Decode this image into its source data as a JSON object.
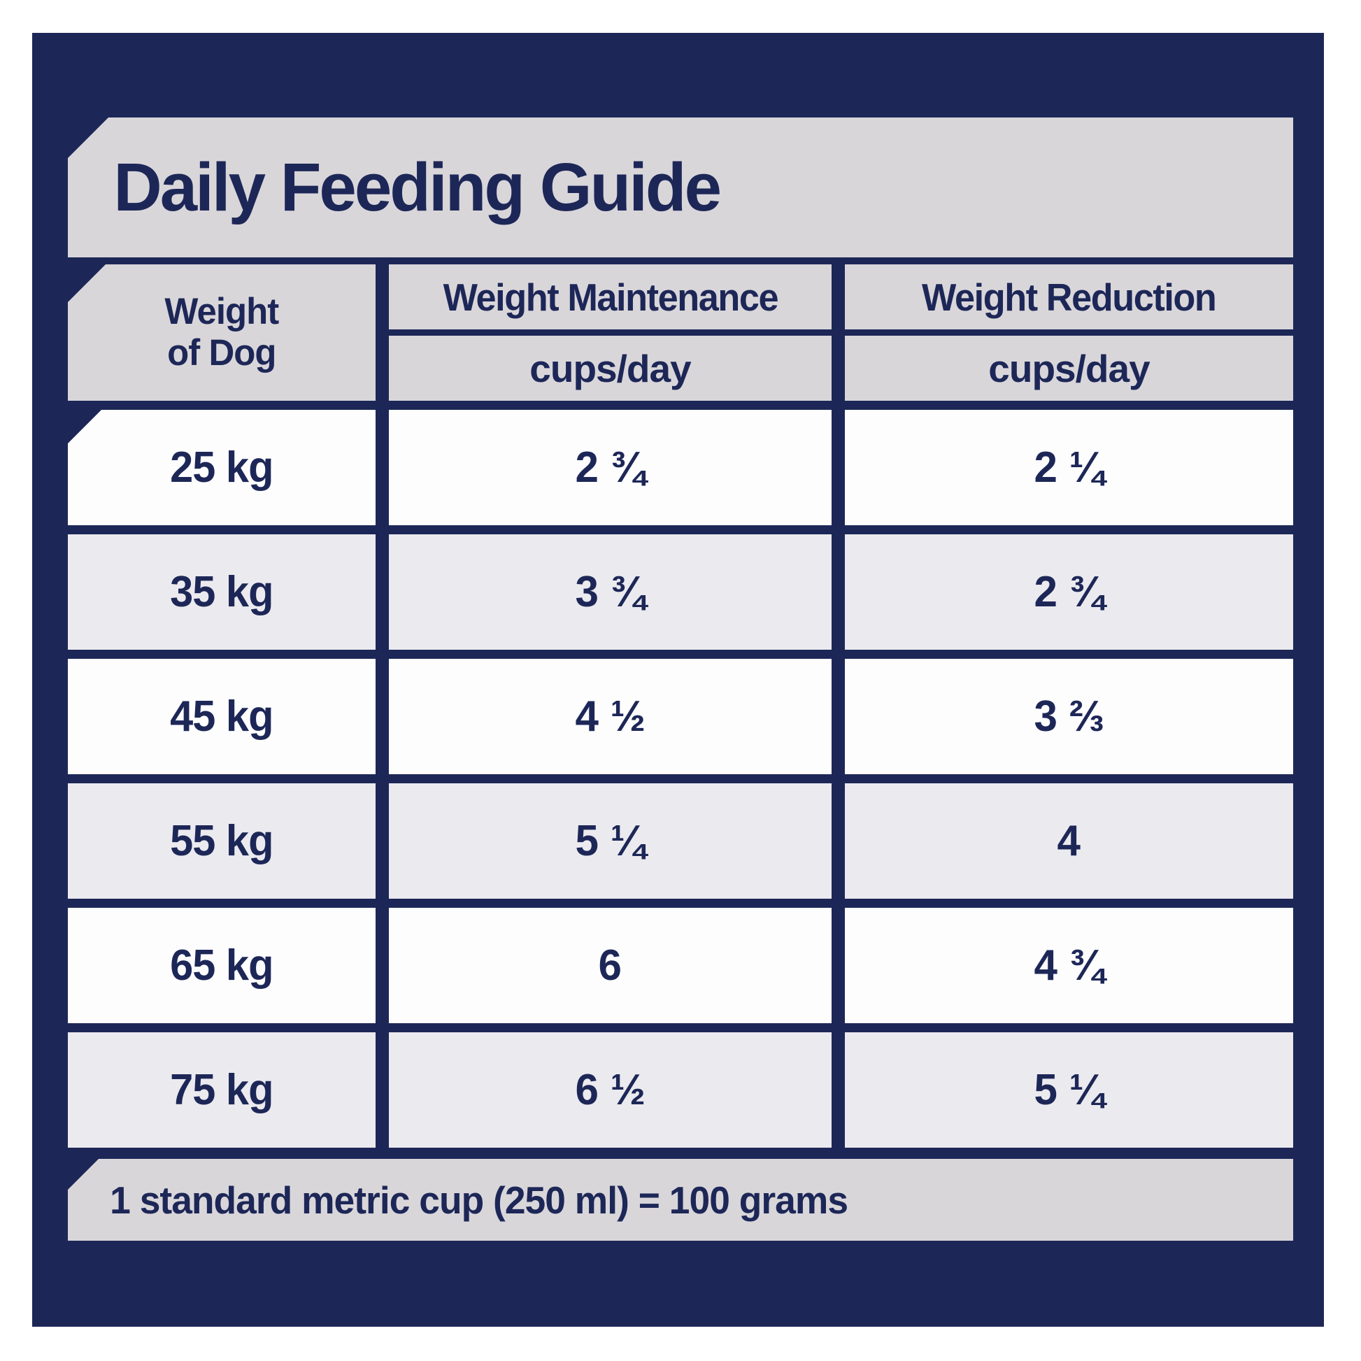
{
  "title": "Daily Feeding Guide",
  "table": {
    "weight_header": {
      "line1": "Weight",
      "line2": "of Dog"
    },
    "columns": [
      {
        "label": "Weight Maintenance",
        "unit": "cups/day"
      },
      {
        "label": "Weight Reduction",
        "unit": "cups/day"
      }
    ],
    "rows": [
      {
        "weight": "25 kg",
        "maintenance": "2 ¾",
        "reduction": "2 ¼"
      },
      {
        "weight": "35 kg",
        "maintenance": "3 ¾",
        "reduction": "2 ¾"
      },
      {
        "weight": "45 kg",
        "maintenance": "4 ½",
        "reduction": "3 ⅔"
      },
      {
        "weight": "55 kg",
        "maintenance": "5 ¼",
        "reduction": "4"
      },
      {
        "weight": "65 kg",
        "maintenance": "6",
        "reduction": "4 ¾"
      },
      {
        "weight": "75 kg",
        "maintenance": "6 ½",
        "reduction": "5 ¼"
      }
    ]
  },
  "footer": {
    "note": "1 standard metric cup (250 ml) = 100 grams"
  },
  "colors": {
    "panel_navy": "#1d2757",
    "banner_gray": "#d9d6da",
    "row_gray": "#ebeaef",
    "row_white": "#fdfdfe",
    "text_navy": "#1d2757",
    "page_bg": "#ffffff"
  }
}
